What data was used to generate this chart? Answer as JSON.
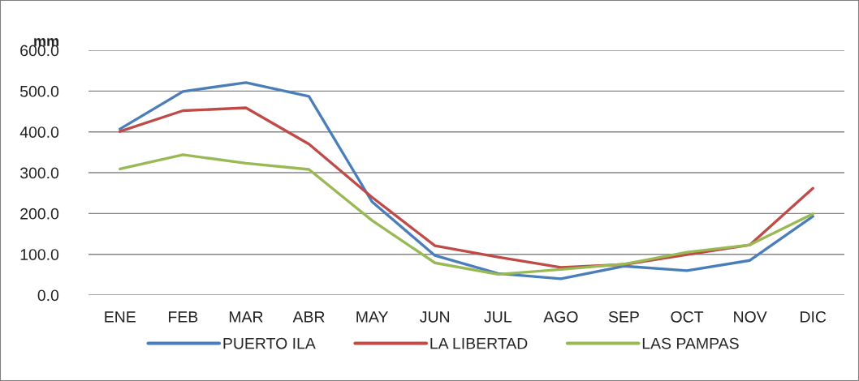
{
  "chart_data": {
    "type": "line",
    "ylabel": "mm",
    "categories": [
      "ENE",
      "FEB",
      "MAR",
      "ABR",
      "MAY",
      "JUN",
      "JUL",
      "AGO",
      "SEP",
      "OCT",
      "NOV",
      "DIC"
    ],
    "series": [
      {
        "name": "PUERTO ILA",
        "color": "#4a7ebb",
        "values": [
          407,
          499,
          521,
          487,
          229,
          97,
          53,
          40,
          71,
          60,
          85,
          193
        ]
      },
      {
        "name": "LA LIBERTAD",
        "color": "#be4b48",
        "values": [
          401,
          452,
          459,
          370,
          240,
          121,
          93,
          68,
          75,
          99,
          123,
          262
        ]
      },
      {
        "name": "LAS PAMPAS",
        "color": "#98b954",
        "values": [
          309,
          344,
          323,
          308,
          183,
          79,
          51,
          63,
          76,
          105,
          123,
          199
        ]
      }
    ],
    "ylim": [
      0,
      600
    ],
    "yticks": [
      {
        "value": 0,
        "label": "0.0"
      },
      {
        "value": 100,
        "label": "100.0"
      },
      {
        "value": 200,
        "label": "200.0"
      },
      {
        "value": 300,
        "label": "300.0"
      },
      {
        "value": 400,
        "label": "400.0"
      },
      {
        "value": 500,
        "label": "500.0"
      },
      {
        "value": 600,
        "label": "600.0"
      }
    ],
    "grid": "y",
    "legend": "bottom",
    "marker": "none",
    "line_style": "solid"
  }
}
